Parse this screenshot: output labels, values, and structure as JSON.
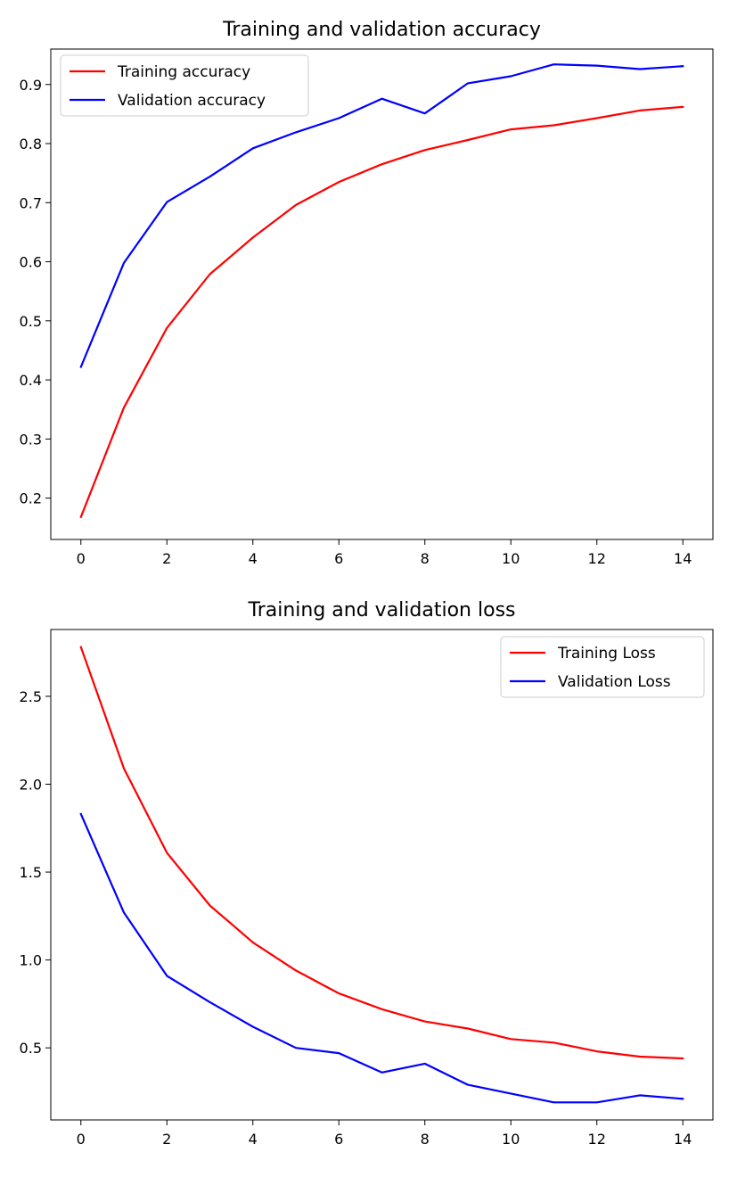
{
  "chart_data": [
    {
      "type": "line",
      "title": "Training and validation accuracy",
      "xlabel": "",
      "ylabel": "",
      "x": [
        0,
        1,
        2,
        3,
        4,
        5,
        6,
        7,
        8,
        9,
        10,
        11,
        12,
        13,
        14
      ],
      "xlim": [
        -0.7,
        14.7
      ],
      "ylim": [
        0.13,
        0.96
      ],
      "xticks": [
        0,
        2,
        4,
        6,
        8,
        10,
        12,
        14
      ],
      "xtick_labels": [
        "0",
        "2",
        "4",
        "6",
        "8",
        "10",
        "12",
        "14"
      ],
      "yticks": [
        0.2,
        0.3,
        0.4,
        0.5,
        0.6,
        0.7,
        0.8,
        0.9
      ],
      "ytick_labels": [
        "0.2",
        "0.3",
        "0.4",
        "0.5",
        "0.6",
        "0.7",
        "0.8",
        "0.9"
      ],
      "grid": false,
      "legend_position": "upper-left",
      "series": [
        {
          "name": "Training accuracy",
          "color": "#ff0000",
          "values": [
            0.168,
            0.353,
            0.488,
            0.579,
            0.641,
            0.696,
            0.735,
            0.765,
            0.789,
            0.806,
            0.824,
            0.831,
            0.843,
            0.856,
            0.862
          ]
        },
        {
          "name": "Validation accuracy",
          "color": "#0000ff",
          "values": [
            0.422,
            0.598,
            0.701,
            0.744,
            0.792,
            0.819,
            0.843,
            0.876,
            0.851,
            0.902,
            0.914,
            0.934,
            0.932,
            0.926,
            0.931
          ]
        }
      ]
    },
    {
      "type": "line",
      "title": "Training and validation loss",
      "xlabel": "",
      "ylabel": "",
      "x": [
        0,
        1,
        2,
        3,
        4,
        5,
        6,
        7,
        8,
        9,
        10,
        11,
        12,
        13,
        14
      ],
      "xlim": [
        -0.7,
        14.7
      ],
      "ylim": [
        0.09,
        2.88
      ],
      "xticks": [
        0,
        2,
        4,
        6,
        8,
        10,
        12,
        14
      ],
      "xtick_labels": [
        "0",
        "2",
        "4",
        "6",
        "8",
        "10",
        "12",
        "14"
      ],
      "yticks": [
        0.5,
        1.0,
        1.5,
        2.0,
        2.5
      ],
      "ytick_labels": [
        "0.5",
        "1.0",
        "1.5",
        "2.0",
        "2.5"
      ],
      "grid": false,
      "legend_position": "upper-right",
      "series": [
        {
          "name": "Training Loss",
          "color": "#ff0000",
          "values": [
            2.78,
            2.09,
            1.61,
            1.31,
            1.1,
            0.94,
            0.81,
            0.72,
            0.65,
            0.61,
            0.55,
            0.53,
            0.48,
            0.45,
            0.44
          ]
        },
        {
          "name": "Validation Loss",
          "color": "#0000ff",
          "values": [
            1.83,
            1.27,
            0.91,
            0.76,
            0.62,
            0.5,
            0.47,
            0.36,
            0.41,
            0.29,
            0.24,
            0.19,
            0.19,
            0.23,
            0.21
          ]
        }
      ]
    }
  ]
}
